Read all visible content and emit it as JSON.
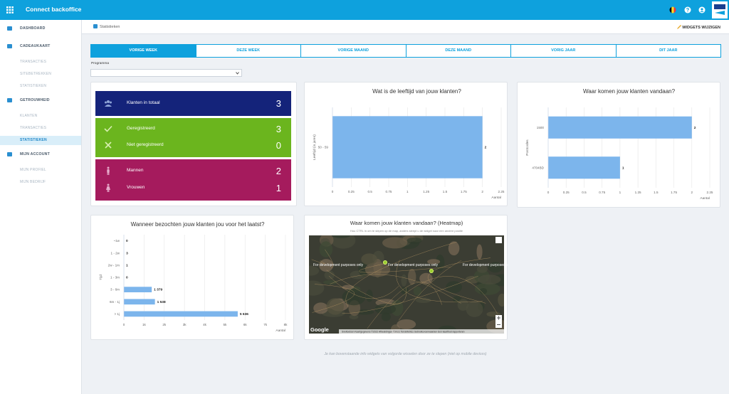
{
  "header": {
    "title": "Connect backoffice"
  },
  "sidebar": {
    "sections": [
      {
        "label": "DASHBOARD"
      },
      {
        "label": "CADEAUKAART",
        "items": [
          "TRANSACTIES",
          "SITEBETREKKEN",
          "STATISTIEKEN"
        ]
      },
      {
        "label": "GETROUWHEID",
        "items": [
          "KLANTEN",
          "TRANSACTIES",
          "STATISTIEKEN"
        ]
      },
      {
        "label": "MIJN ACCOUNT",
        "items": [
          "MIJN PROFIEL",
          "MIJN BEDRIJF"
        ]
      }
    ]
  },
  "breadcrumb": "Statistieken",
  "toolbar": {
    "action": "WIDGETS WIJZIGEN"
  },
  "tabs": [
    "VORIGE WEEK",
    "DEZE WEEK",
    "VORIGE MAAND",
    "DEZE MAAND",
    "VORIG JAAR",
    "DIT JAAR"
  ],
  "filter": {
    "label": "Programma"
  },
  "stats": {
    "groups": [
      [
        {
          "label": "Klanten in totaal",
          "value": 3
        }
      ],
      [
        {
          "label": "Geregistreerd",
          "value": 3
        },
        {
          "label": "Niet geregistreerd",
          "value": 0
        }
      ],
      [
        {
          "label": "Mannen",
          "value": 2
        },
        {
          "label": "Vrouwen",
          "value": 1
        }
      ]
    ]
  },
  "chart_data": [
    {
      "type": "hbar",
      "title": "Wat is de leeftijd van jouw klanten?",
      "ylabel": "Leeftijd (in jaren)",
      "xlabel": "Aantal",
      "categories": [
        "50 - 59"
      ],
      "values": [
        2
      ],
      "color": "#7cb5ec",
      "xlim": [
        0,
        2.25
      ],
      "xticks": [
        0,
        0.25,
        0.5,
        0.75,
        1,
        1.25,
        1.5,
        1.75,
        2,
        2.25
      ],
      "grid": true
    },
    {
      "type": "hbar",
      "title": "Waar komen jouw klanten vandaan?",
      "ylabel": "Postcodes",
      "xlabel": "Aantal",
      "categories": [
        "1500",
        "4704BD"
      ],
      "values": [
        2,
        1
      ],
      "color": "#7cb5ec",
      "xlim": [
        0,
        2.25
      ],
      "xticks": [
        0,
        0.25,
        0.5,
        0.75,
        1,
        1.25,
        1.5,
        1.75,
        2,
        2.25
      ],
      "grid": true
    },
    {
      "type": "hbar",
      "title": "Wanneer bezochten jouw klanten jou voor het laatst?",
      "ylabel": "Tijd",
      "xlabel": "Aantal",
      "categories": [
        "~1w",
        "1 - 2w",
        "2w - 1m",
        "1 - 3m",
        "3 - 6m",
        "6m - 1j",
        "> 1j"
      ],
      "values": [
        0,
        3,
        1,
        0,
        1379,
        1538,
        5636
      ],
      "value_labels": [
        "0",
        "3",
        "1",
        "0",
        "1 379",
        "1 538",
        "5 636"
      ],
      "color": "#7cb5ec",
      "xlim": [
        0,
        8000
      ],
      "xticks": [
        0,
        {
          "value": 1000,
          "label": "1k"
        },
        {
          "value": 2000,
          "label": "2k"
        },
        {
          "value": 3000,
          "label": "3k"
        },
        {
          "value": 4000,
          "label": "4k"
        },
        {
          "value": 5000,
          "label": "5k"
        },
        {
          "value": 6000,
          "label": "6k"
        },
        {
          "value": 7000,
          "label": "7k"
        },
        {
          "value": 8000,
          "label": "8k"
        }
      ],
      "grid": true
    }
  ],
  "map": {
    "title": "Waar komen jouw klanten vandaan? (Heatmap)",
    "subtitle": "Hou CTRL in om te slepen op de map, anders sleept u de widget naar een andere positie",
    "watermark": "For development purposes only",
    "logo": "Google",
    "attribution": "Sneltoetsen  Kaartgegevens ©2022 Afbeeldingen ©2022 TerraMetrics  Gebruiksvoorwaarden  Een kaartfout rapporteren"
  },
  "footer": "Je kan bovenstaande info widgets van volgorde wisselen door ze te slepen (niet op mobile devices)"
}
